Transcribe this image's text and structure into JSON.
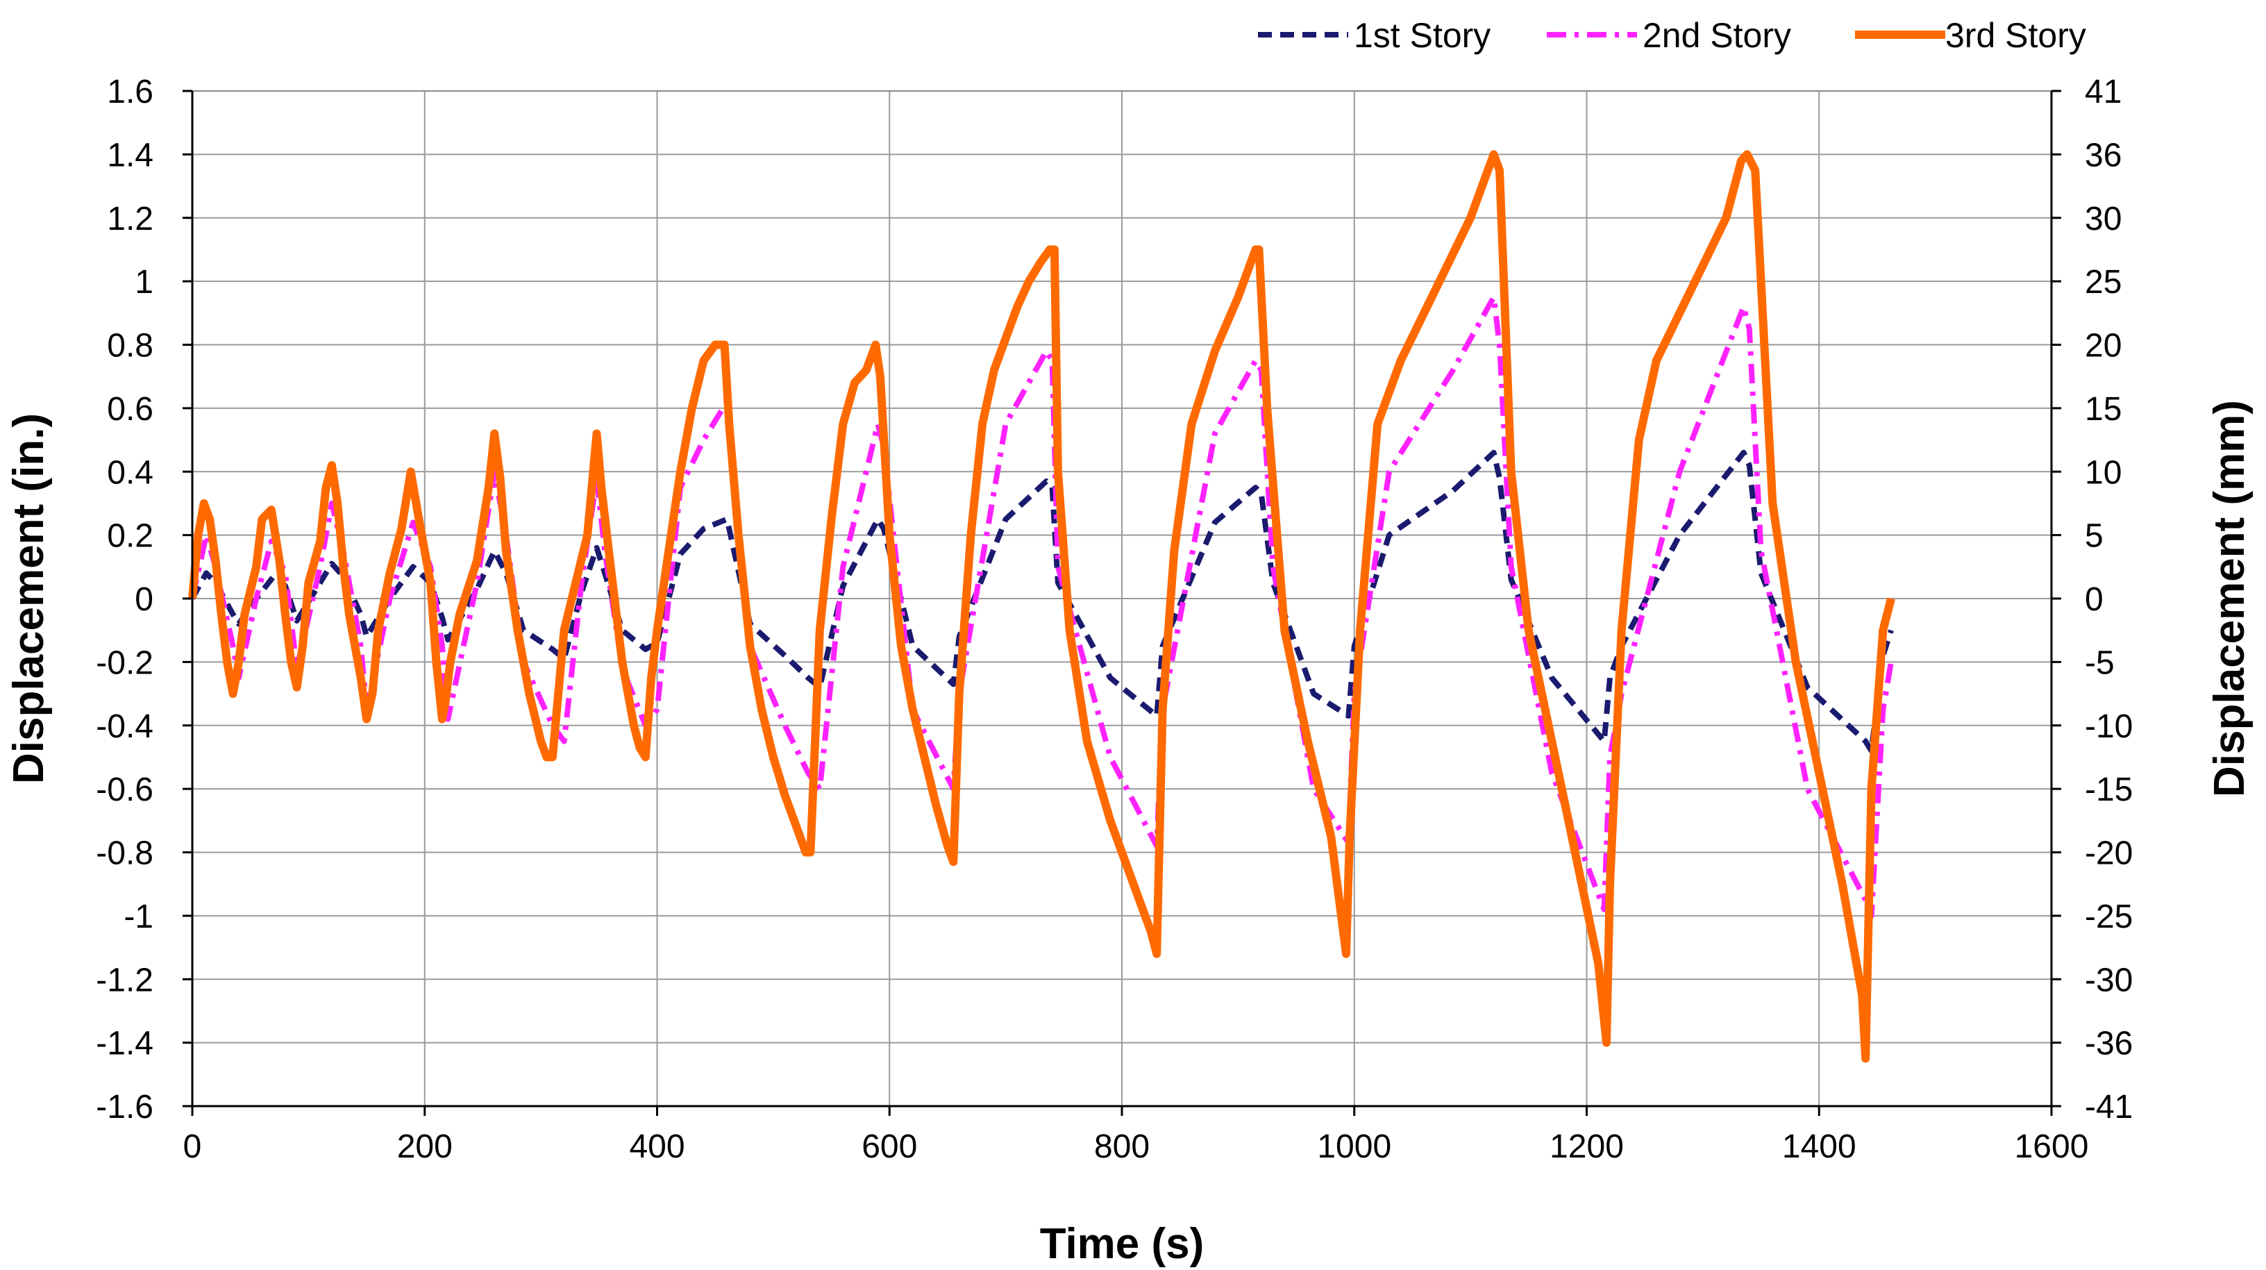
{
  "chart_data": {
    "type": "line",
    "title": "",
    "xlabel": "Time (s)",
    "ylabel": "Displacement (in.)",
    "y2label": "Displacement (mm)",
    "xlim": [
      0,
      1600
    ],
    "ylim": [
      -1.6,
      1.6
    ],
    "grid": true,
    "legend_position": "top-right",
    "x_ticks": [
      "0",
      "200",
      "400",
      "600",
      "800",
      "1000",
      "1200",
      "1400",
      "1600"
    ],
    "y_ticks": [
      "1.6",
      "1.4",
      "1.2",
      "1",
      "0.8",
      "0.6",
      "0.4",
      "0.2",
      "0",
      "-0.2",
      "-0.4",
      "-0.6",
      "-0.8",
      "-1",
      "-1.2",
      "-1.4",
      "-1.6"
    ],
    "y2_ticks": [
      "41",
      "36",
      "30",
      "25",
      "20",
      "15",
      "10",
      "5",
      "0",
      "-5",
      "-10",
      "-15",
      "-20",
      "-25",
      "-30",
      "-36",
      "-41"
    ],
    "series": [
      {
        "name": "1st Story",
        "color": "#1a1a6e",
        "style": "dashed",
        "x": [
          0,
          12,
          20,
          35,
          40,
          55,
          70,
          80,
          90,
          110,
          120,
          130,
          145,
          150,
          170,
          190,
          205,
          215,
          220,
          245,
          260,
          270,
          285,
          310,
          320,
          335,
          348,
          355,
          370,
          390,
          400,
          420,
          440,
          460,
          462,
          480,
          510,
          530,
          540,
          560,
          590,
          595,
          620,
          655,
          660,
          700,
          735,
          740,
          745,
          790,
          830,
          835,
          880,
          915,
          920,
          930,
          965,
          995,
          1000,
          1030,
          1085,
          1120,
          1125,
          1135,
          1170,
          1215,
          1220,
          1230,
          1280,
          1335,
          1340,
          1350,
          1390,
          1440,
          1445,
          1455,
          1462
        ],
        "y": [
          0,
          0.08,
          0.05,
          -0.05,
          -0.08,
          0.0,
          0.07,
          0.04,
          -0.07,
          0.05,
          0.11,
          0.07,
          -0.05,
          -0.12,
          0.0,
          0.1,
          0.05,
          -0.06,
          -0.13,
          0.03,
          0.15,
          0.08,
          -0.1,
          -0.16,
          -0.19,
          0.02,
          0.16,
          0.08,
          -0.1,
          -0.16,
          -0.14,
          0.14,
          0.22,
          0.25,
          0.22,
          -0.08,
          -0.18,
          -0.25,
          -0.28,
          0.04,
          0.25,
          0.22,
          -0.15,
          -0.27,
          -0.12,
          0.25,
          0.37,
          0.35,
          0.05,
          -0.25,
          -0.37,
          -0.15,
          0.24,
          0.35,
          0.33,
          0.05,
          -0.3,
          -0.37,
          -0.15,
          0.2,
          0.34,
          0.46,
          0.38,
          0.06,
          -0.25,
          -0.45,
          -0.25,
          -0.15,
          0.2,
          0.46,
          0.42,
          0.08,
          -0.28,
          -0.45,
          -0.48,
          -0.18,
          -0.1
        ]
      },
      {
        "name": "2nd Story",
        "color": "#ff22ff",
        "style": "dash-dot",
        "x": [
          0,
          12,
          20,
          35,
          40,
          55,
          68,
          80,
          90,
          110,
          120,
          130,
          145,
          150,
          170,
          190,
          205,
          215,
          220,
          245,
          260,
          270,
          285,
          310,
          320,
          335,
          348,
          355,
          370,
          390,
          400,
          420,
          440,
          460,
          462,
          480,
          510,
          530,
          540,
          560,
          590,
          595,
          620,
          655,
          660,
          700,
          735,
          740,
          745,
          790,
          830,
          835,
          880,
          915,
          920,
          930,
          965,
          995,
          1000,
          1030,
          1085,
          1120,
          1125,
          1135,
          1170,
          1215,
          1220,
          1230,
          1280,
          1335,
          1340,
          1350,
          1390,
          1440,
          1445,
          1455,
          1462
        ],
        "y": [
          0,
          0.2,
          0.1,
          -0.15,
          -0.25,
          0.0,
          0.18,
          0.08,
          -0.22,
          0.1,
          0.3,
          0.15,
          -0.15,
          -0.35,
          0.0,
          0.24,
          0.1,
          -0.15,
          -0.38,
          0.05,
          0.4,
          0.2,
          -0.2,
          -0.4,
          -0.45,
          0.05,
          0.38,
          0.15,
          -0.22,
          -0.4,
          -0.35,
          0.35,
          0.5,
          0.62,
          0.5,
          -0.15,
          -0.4,
          -0.55,
          -0.6,
          0.1,
          0.55,
          0.48,
          -0.35,
          -0.6,
          -0.3,
          0.55,
          0.78,
          0.75,
          0.1,
          -0.5,
          -0.78,
          -0.35,
          0.52,
          0.75,
          0.72,
          0.1,
          -0.6,
          -0.77,
          -0.3,
          0.4,
          0.72,
          0.95,
          0.8,
          0.1,
          -0.55,
          -0.98,
          -0.5,
          -0.3,
          0.4,
          0.92,
          0.85,
          0.15,
          -0.6,
          -0.95,
          -1.0,
          -0.35,
          -0.2
        ]
      },
      {
        "name": "3rd Story",
        "color": "#ff6a00",
        "style": "solid",
        "x": [
          0,
          5,
          10,
          15,
          20,
          25,
          30,
          35,
          40,
          45,
          55,
          60,
          68,
          75,
          80,
          85,
          90,
          95,
          100,
          110,
          115,
          120,
          125,
          130,
          135,
          145,
          150,
          155,
          160,
          170,
          180,
          188,
          195,
          205,
          210,
          215,
          218,
          222,
          230,
          245,
          255,
          260,
          265,
          270,
          280,
          290,
          300,
          305,
          310,
          315,
          320,
          330,
          340,
          348,
          352,
          360,
          370,
          380,
          385,
          390,
          395,
          400,
          410,
          420,
          430,
          440,
          450,
          458,
          462,
          470,
          480,
          490,
          500,
          510,
          520,
          528,
          532,
          540,
          550,
          560,
          570,
          580,
          588,
          592,
          600,
          610,
          620,
          630,
          640,
          650,
          655,
          660,
          670,
          680,
          690,
          700,
          710,
          720,
          730,
          738,
          742,
          745,
          755,
          770,
          790,
          810,
          825,
          830,
          835,
          845,
          860,
          880,
          900,
          915,
          918,
          925,
          940,
          960,
          980,
          993,
          996,
          1005,
          1020,
          1040,
          1060,
          1080,
          1100,
          1115,
          1120,
          1125,
          1135,
          1150,
          1170,
          1190,
          1210,
          1217,
          1220,
          1230,
          1245,
          1260,
          1280,
          1300,
          1320,
          1333,
          1338,
          1345,
          1360,
          1380,
          1400,
          1420,
          1437,
          1440,
          1445,
          1455,
          1462
        ],
        "y": [
          0,
          0.2,
          0.3,
          0.25,
          0.12,
          -0.05,
          -0.2,
          -0.3,
          -0.2,
          -0.05,
          0.1,
          0.25,
          0.28,
          0.12,
          -0.05,
          -0.2,
          -0.28,
          -0.15,
          0.05,
          0.18,
          0.35,
          0.42,
          0.3,
          0.1,
          -0.05,
          -0.25,
          -0.38,
          -0.3,
          -0.1,
          0.08,
          0.22,
          0.4,
          0.25,
          0.05,
          -0.2,
          -0.38,
          -0.32,
          -0.2,
          -0.05,
          0.12,
          0.35,
          0.52,
          0.38,
          0.15,
          -0.1,
          -0.3,
          -0.45,
          -0.5,
          -0.5,
          -0.3,
          -0.1,
          0.05,
          0.2,
          0.52,
          0.35,
          0.1,
          -0.2,
          -0.4,
          -0.47,
          -0.5,
          -0.25,
          -0.1,
          0.15,
          0.4,
          0.6,
          0.75,
          0.8,
          0.8,
          0.55,
          0.2,
          -0.15,
          -0.35,
          -0.5,
          -0.62,
          -0.72,
          -0.8,
          -0.8,
          -0.1,
          0.25,
          0.55,
          0.68,
          0.72,
          0.8,
          0.7,
          0.2,
          -0.15,
          -0.35,
          -0.5,
          -0.65,
          -0.78,
          -0.83,
          -0.3,
          0.2,
          0.55,
          0.72,
          0.82,
          0.92,
          1.0,
          1.06,
          1.1,
          1.1,
          0.4,
          -0.1,
          -0.45,
          -0.7,
          -0.9,
          -1.05,
          -1.12,
          -0.35,
          0.15,
          0.55,
          0.78,
          0.95,
          1.1,
          1.1,
          0.6,
          -0.1,
          -0.45,
          -0.75,
          -1.12,
          -0.75,
          -0.1,
          0.55,
          0.75,
          0.9,
          1.05,
          1.2,
          1.35,
          1.4,
          1.35,
          0.4,
          -0.1,
          -0.45,
          -0.8,
          -1.15,
          -1.4,
          -0.9,
          -0.1,
          0.5,
          0.75,
          0.9,
          1.05,
          1.2,
          1.38,
          1.4,
          1.35,
          0.3,
          -0.2,
          -0.55,
          -0.9,
          -1.25,
          -1.45,
          -0.6,
          -0.1,
          0.0
        ]
      }
    ]
  }
}
